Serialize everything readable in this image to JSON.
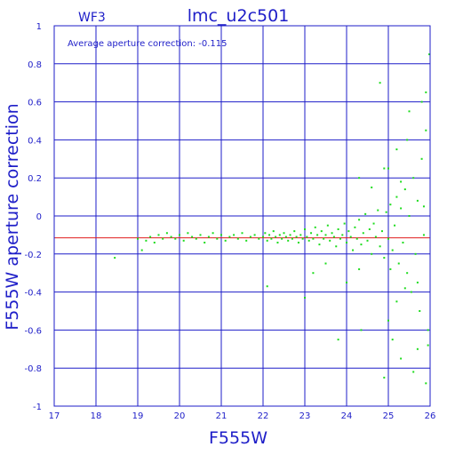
{
  "chart_data": {
    "type": "scatter",
    "title": "lmc_u2c501",
    "subtitle": "WF3",
    "annotation": "Average aperture correction: -0.115",
    "xlabel": "F555W",
    "ylabel": "F555W aperture correction",
    "xlim": [
      17,
      26
    ],
    "ylim": [
      -1,
      1
    ],
    "x_ticks": [
      "17",
      "18",
      "19",
      "20",
      "21",
      "22",
      "23",
      "24",
      "25",
      "26"
    ],
    "y_ticks": [
      "-1",
      "-0.8",
      "-0.6",
      "-0.4",
      "-0.2",
      "0",
      "0.2",
      "0.4",
      "0.6",
      "0.8",
      "1"
    ],
    "grid": true,
    "reference_line": {
      "y": -0.115,
      "color": "#e01e1e"
    },
    "colors": {
      "axis": "#1e1ec8",
      "points": "#1edc1e",
      "reference": "#e01e1e"
    },
    "points": [
      [
        18.45,
        -0.22
      ],
      [
        19.0,
        -0.12
      ],
      [
        19.1,
        -0.18
      ],
      [
        19.2,
        -0.13
      ],
      [
        19.3,
        -0.11
      ],
      [
        19.4,
        -0.14
      ],
      [
        19.5,
        -0.1
      ],
      [
        19.6,
        -0.12
      ],
      [
        19.7,
        -0.09
      ],
      [
        19.8,
        -0.11
      ],
      [
        19.9,
        -0.12
      ],
      [
        20.0,
        -0.1
      ],
      [
        20.1,
        -0.13
      ],
      [
        20.2,
        -0.09
      ],
      [
        20.3,
        -0.11
      ],
      [
        20.4,
        -0.12
      ],
      [
        20.5,
        -0.1
      ],
      [
        20.6,
        -0.14
      ],
      [
        20.7,
        -0.11
      ],
      [
        20.8,
        -0.09
      ],
      [
        20.9,
        -0.12
      ],
      [
        21.0,
        -0.1
      ],
      [
        21.1,
        -0.13
      ],
      [
        21.2,
        -0.11
      ],
      [
        21.3,
        -0.1
      ],
      [
        21.4,
        -0.12
      ],
      [
        21.5,
        -0.09
      ],
      [
        21.6,
        -0.13
      ],
      [
        21.7,
        -0.11
      ],
      [
        21.8,
        -0.1
      ],
      [
        21.9,
        -0.12
      ],
      [
        22.0,
        -0.11
      ],
      [
        22.05,
        -0.09
      ],
      [
        22.1,
        -0.13
      ],
      [
        22.15,
        -0.1
      ],
      [
        22.2,
        -0.12
      ],
      [
        22.25,
        -0.08
      ],
      [
        22.3,
        -0.11
      ],
      [
        22.35,
        -0.14
      ],
      [
        22.4,
        -0.1
      ],
      [
        22.45,
        -0.12
      ],
      [
        22.5,
        -0.09
      ],
      [
        22.55,
        -0.11
      ],
      [
        22.6,
        -0.13
      ],
      [
        22.65,
        -0.1
      ],
      [
        22.7,
        -0.12
      ],
      [
        22.75,
        -0.08
      ],
      [
        22.8,
        -0.11
      ],
      [
        22.85,
        -0.14
      ],
      [
        22.9,
        -0.1
      ],
      [
        22.95,
        -0.12
      ],
      [
        23.0,
        -0.07
      ],
      [
        23.05,
        -0.11
      ],
      [
        23.1,
        -0.13
      ],
      [
        23.15,
        -0.09
      ],
      [
        23.2,
        -0.12
      ],
      [
        23.25,
        -0.06
      ],
      [
        23.3,
        -0.1
      ],
      [
        23.35,
        -0.15
      ],
      [
        23.4,
        -0.08
      ],
      [
        23.45,
        -0.12
      ],
      [
        23.5,
        -0.1
      ],
      [
        23.55,
        -0.05
      ],
      [
        23.6,
        -0.13
      ],
      [
        23.65,
        -0.09
      ],
      [
        23.7,
        -0.11
      ],
      [
        23.75,
        -0.16
      ],
      [
        23.8,
        -0.07
      ],
      [
        23.85,
        -0.12
      ],
      [
        23.9,
        -0.1
      ],
      [
        23.95,
        -0.04
      ],
      [
        24.0,
        -0.14
      ],
      [
        24.05,
        -0.08
      ],
      [
        24.1,
        -0.11
      ],
      [
        24.15,
        -0.18
      ],
      [
        24.2,
        -0.06
      ],
      [
        24.25,
        -0.12
      ],
      [
        24.3,
        -0.02
      ],
      [
        24.35,
        -0.15
      ],
      [
        24.4,
        -0.09
      ],
      [
        24.45,
        0.01
      ],
      [
        24.5,
        -0.13
      ],
      [
        24.55,
        -0.07
      ],
      [
        24.6,
        -0.2
      ],
      [
        24.65,
        -0.04
      ],
      [
        24.7,
        -0.11
      ],
      [
        24.75,
        0.03
      ],
      [
        24.8,
        -0.16
      ],
      [
        24.85,
        -0.08
      ],
      [
        24.9,
        -0.22
      ],
      [
        24.95,
        0.02
      ],
      [
        25.0,
        -0.12
      ],
      [
        25.05,
        0.06
      ],
      [
        25.1,
        -0.18
      ],
      [
        25.15,
        -0.05
      ],
      [
        25.2,
        0.1
      ],
      [
        25.25,
        -0.25
      ],
      [
        25.3,
        0.04
      ],
      [
        25.35,
        -0.14
      ],
      [
        25.4,
        0.14
      ],
      [
        25.45,
        -0.3
      ],
      [
        25.5,
        0.0
      ],
      [
        25.55,
        -0.4
      ],
      [
        25.6,
        0.2
      ],
      [
        25.65,
        -0.2
      ],
      [
        25.7,
        0.08
      ],
      [
        25.75,
        -0.5
      ],
      [
        25.8,
        0.3
      ],
      [
        25.85,
        -0.1
      ],
      [
        25.9,
        0.45
      ],
      [
        25.95,
        -0.6
      ],
      [
        25.98,
        0.85
      ],
      [
        22.1,
        -0.37
      ],
      [
        23.0,
        -0.43
      ],
      [
        23.2,
        -0.3
      ],
      [
        23.5,
        -0.25
      ],
      [
        23.8,
        -0.65
      ],
      [
        24.0,
        -0.35
      ],
      [
        24.3,
        -0.28
      ],
      [
        24.35,
        -0.6
      ],
      [
        24.8,
        0.7
      ],
      [
        24.9,
        -0.85
      ],
      [
        25.0,
        -0.55
      ],
      [
        25.1,
        -0.65
      ],
      [
        25.3,
        -0.75
      ],
      [
        25.6,
        -0.82
      ],
      [
        25.7,
        -0.7
      ],
      [
        25.9,
        -0.88
      ],
      [
        24.3,
        0.2
      ],
      [
        24.6,
        0.15
      ],
      [
        24.9,
        0.25
      ],
      [
        25.2,
        0.35
      ],
      [
        25.5,
        0.55
      ],
      [
        25.8,
        0.6
      ],
      [
        25.9,
        0.65
      ],
      [
        25.95,
        -0.68
      ],
      [
        25.0,
        0.25
      ],
      [
        25.2,
        -0.45
      ],
      [
        25.4,
        -0.38
      ],
      [
        25.45,
        0.4
      ],
      [
        25.7,
        -0.35
      ],
      [
        25.85,
        0.05
      ],
      [
        25.3,
        0.18
      ],
      [
        25.05,
        -0.28
      ]
    ]
  }
}
